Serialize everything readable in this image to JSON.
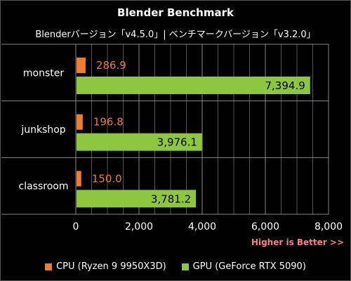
{
  "chart_data": {
    "type": "bar",
    "title": "Blender Benchmark",
    "subtitle": "Blenderバージョン「v4.5.0」| ベンチマークバージョン「v3.2.0」",
    "categories": [
      "monster",
      "junkshop",
      "classroom"
    ],
    "series": [
      {
        "name": "CPU (Ryzen 9 9950X3D)",
        "color": "#ed7d31",
        "values": [
          286.9,
          196.8,
          150.0
        ],
        "labels": [
          "286.9",
          "196.8",
          "150.0"
        ]
      },
      {
        "name": "GPU (GeForce RTX 5090)",
        "color": "#8dc63f",
        "values": [
          7394.9,
          3976.1,
          3781.2
        ],
        "labels": [
          "7,394.9",
          "3,976.1",
          "3,781.2"
        ]
      }
    ],
    "xlim": [
      0,
      8000
    ],
    "xticks": [
      0,
      2000,
      4000,
      6000,
      8000
    ],
    "xtick_labels": [
      "0",
      "2,000",
      "4,000",
      "6,000",
      "8,000"
    ],
    "note": "Higher is Better >>",
    "orientation": "horizontal",
    "grid": true,
    "legend_position": "bottom"
  }
}
